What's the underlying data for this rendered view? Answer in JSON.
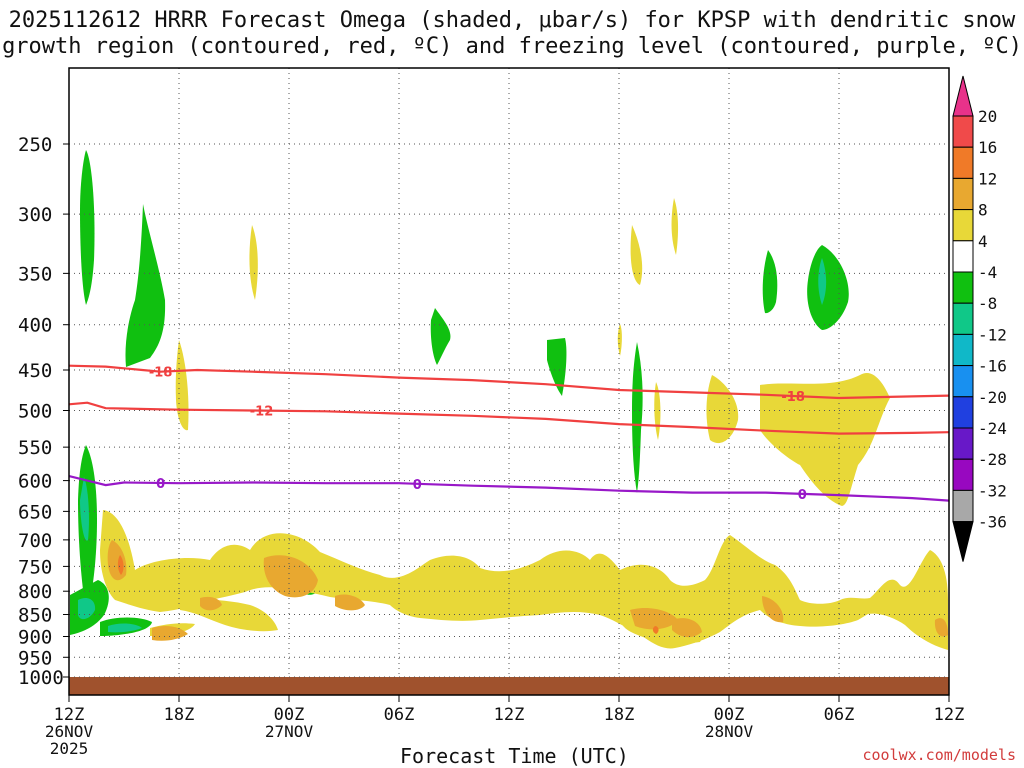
{
  "chart_data": {
    "type": "heatmap",
    "title_line1": "2025112612 HRRR Forecast Omega (shaded, μbar/s) for KPSP with dendritic snow",
    "title_line2": "growth region (contoured, red, ºC) and freezing level (contoured, purple, ºC)",
    "xlabel": "Forecast Time (UTC)",
    "ylabel": "",
    "x_range_hours": [
      0,
      48
    ],
    "y_levels": [
      250,
      300,
      350,
      400,
      450,
      500,
      550,
      600,
      650,
      700,
      750,
      800,
      850,
      900,
      950,
      1000
    ],
    "x_ticks": [
      {
        "hour": 0,
        "label": "12Z",
        "sub1": "26NOV",
        "sub2": "2025"
      },
      {
        "hour": 6,
        "label": "18Z",
        "sub1": "",
        "sub2": ""
      },
      {
        "hour": 12,
        "label": "00Z",
        "sub1": "27NOV",
        "sub2": ""
      },
      {
        "hour": 18,
        "label": "06Z",
        "sub1": "",
        "sub2": ""
      },
      {
        "hour": 24,
        "label": "12Z",
        "sub1": "",
        "sub2": ""
      },
      {
        "hour": 30,
        "label": "18Z",
        "sub1": "",
        "sub2": ""
      },
      {
        "hour": 36,
        "label": "00Z",
        "sub1": "28NOV",
        "sub2": ""
      },
      {
        "hour": 42,
        "label": "06Z",
        "sub1": "",
        "sub2": ""
      },
      {
        "hour": 48,
        "label": "12Z",
        "sub1": "",
        "sub2": ""
      }
    ],
    "colorbar": {
      "labels": [
        "20",
        "16",
        "12",
        "8",
        "4",
        "-4",
        "-8",
        "-12",
        "-16",
        "-20",
        "-24",
        "-28",
        "-32",
        "-36"
      ],
      "colors": [
        "#e8328a",
        "#f04a4a",
        "#f07a28",
        "#e8a830",
        "#e8d838",
        "#ffffff",
        "#10c010",
        "#10c888",
        "#10b8c8",
        "#1890f0",
        "#2040e0",
        "#6818c8",
        "#9808c0",
        "#a8a8a8",
        "#000000"
      ]
    },
    "contours": [
      {
        "name": "dgz-minus18",
        "label": "-18",
        "color": "#f04040",
        "label_hour": 5.0,
        "label2_hour": 39.5,
        "points": [
          [
            0,
            445
          ],
          [
            2,
            446
          ],
          [
            4,
            450
          ],
          [
            5,
            452
          ],
          [
            7,
            450
          ],
          [
            10,
            452
          ],
          [
            14,
            455
          ],
          [
            18,
            459
          ],
          [
            22,
            462
          ],
          [
            26,
            467
          ],
          [
            30,
            474
          ],
          [
            34,
            477
          ],
          [
            38,
            480
          ],
          [
            42,
            484
          ],
          [
            46,
            482
          ],
          [
            48,
            481
          ]
        ]
      },
      {
        "name": "dgz-minus12",
        "label": "-12",
        "color": "#f04040",
        "label_hour": 10.5,
        "label2_hour": null,
        "points": [
          [
            0,
            492
          ],
          [
            1,
            490
          ],
          [
            2,
            497
          ],
          [
            6,
            499
          ],
          [
            10,
            500
          ],
          [
            14,
            501
          ],
          [
            18,
            504
          ],
          [
            22,
            507
          ],
          [
            26,
            511
          ],
          [
            30,
            518
          ],
          [
            34,
            522
          ],
          [
            38,
            527
          ],
          [
            42,
            531
          ],
          [
            46,
            530
          ],
          [
            48,
            529
          ]
        ]
      },
      {
        "name": "freezing-level",
        "label": "0",
        "color": "#9818c8",
        "label_hour": 5.0,
        "label2_hour": 19.0,
        "label3_hour": 40.0,
        "points": [
          [
            0,
            593
          ],
          [
            1,
            600
          ],
          [
            2,
            607
          ],
          [
            3,
            603
          ],
          [
            6,
            604
          ],
          [
            10,
            603
          ],
          [
            14,
            604
          ],
          [
            18,
            604
          ],
          [
            22,
            608
          ],
          [
            26,
            611
          ],
          [
            30,
            616
          ],
          [
            34,
            619
          ],
          [
            38,
            619
          ],
          [
            42,
            623
          ],
          [
            46,
            628
          ],
          [
            48,
            632
          ]
        ]
      }
    ],
    "units": "μbar/s"
  },
  "watermark": "coolwx.com/models"
}
